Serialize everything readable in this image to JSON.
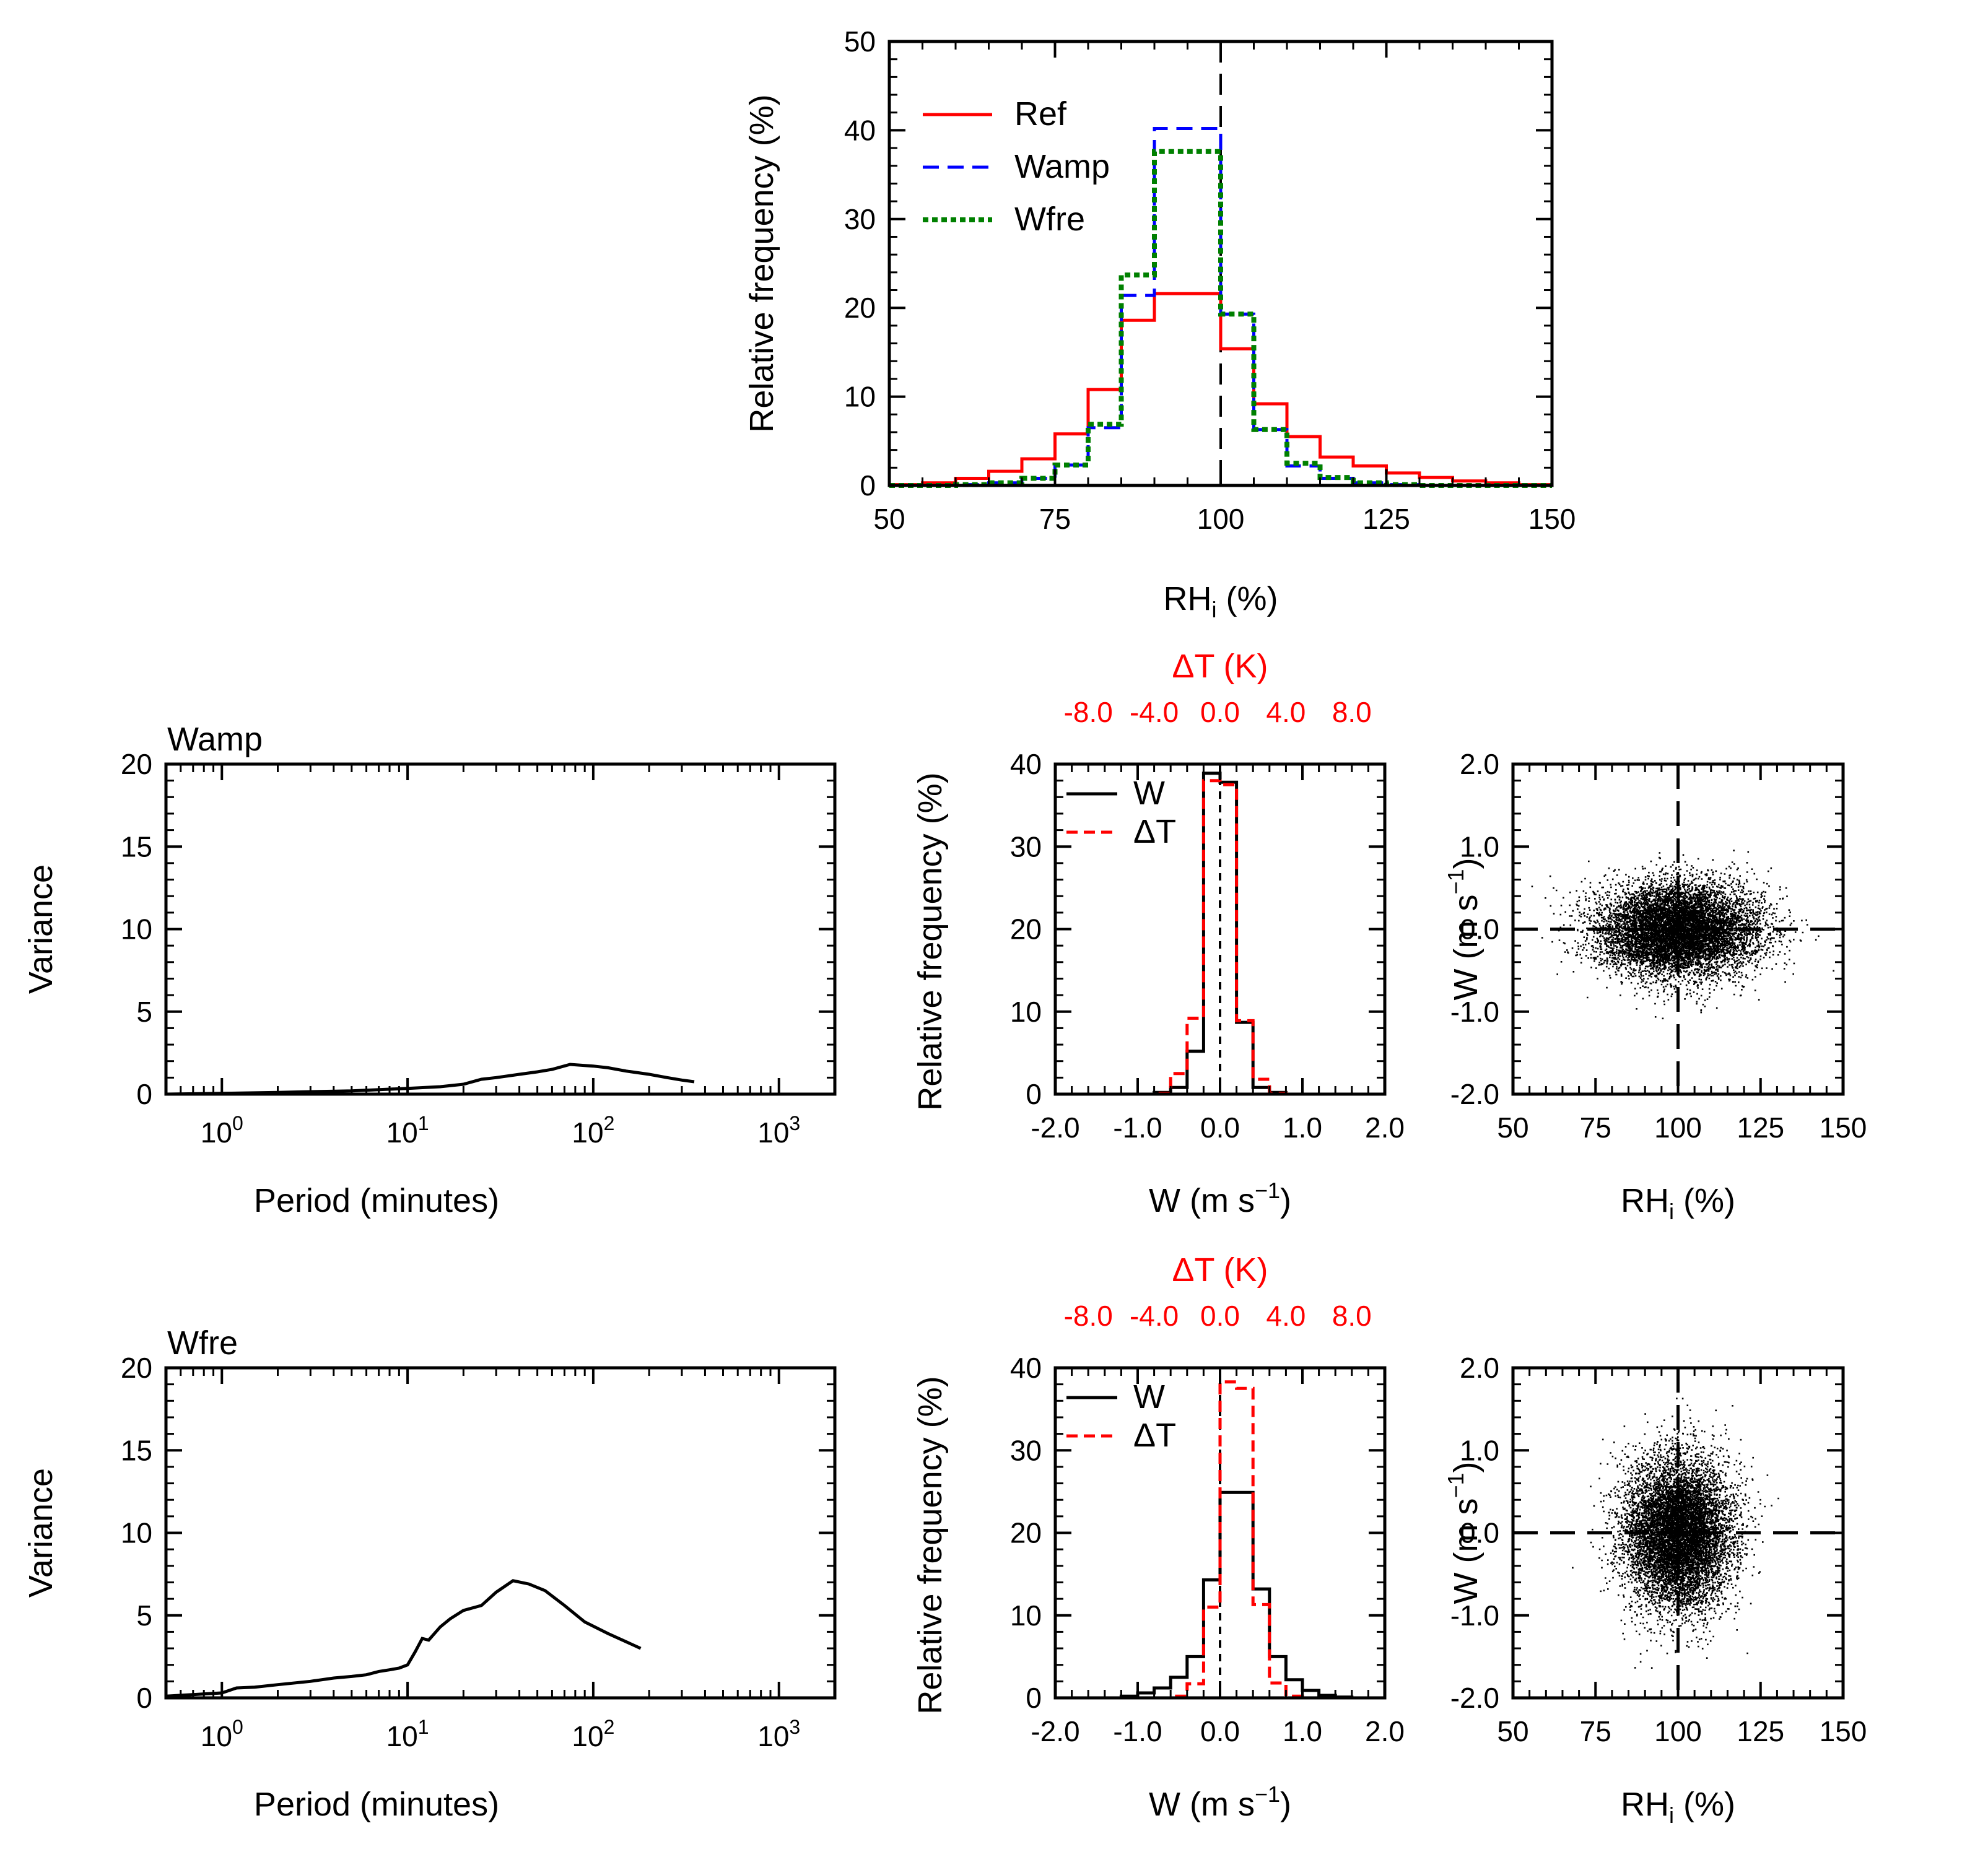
{
  "chart_data": [
    {
      "id": "top",
      "type": "histogram",
      "xlabel": "RH",
      "xlabel_sub": "i",
      "xlabel_unit": " (%)",
      "ylabel": "Relative frequency (%)",
      "xlim": [
        50,
        150
      ],
      "ylim": [
        0,
        50
      ],
      "xticks": [
        "50",
        "75",
        "100",
        "125",
        "150"
      ],
      "yticks": [
        "0",
        "10",
        "20",
        "30",
        "40",
        "50"
      ],
      "vline_x": 100,
      "legend": "top-left",
      "bin_edges": [
        50,
        55,
        60,
        65,
        70,
        75,
        80,
        85,
        90,
        95,
        100,
        105,
        110,
        115,
        120,
        125,
        130,
        135,
        140,
        145,
        150
      ],
      "series": [
        {
          "name": "Ref",
          "color": "#ff0000",
          "style": "solid",
          "values": [
            0.1,
            0.3,
            0.8,
            1.6,
            3.0,
            5.8,
            10.8,
            18.6,
            21.6,
            21.6,
            15.4,
            9.2,
            5.5,
            3.2,
            2.2,
            1.4,
            0.9,
            0.5,
            0.3,
            0.1
          ]
        },
        {
          "name": "Wamp",
          "color": "#0000ff",
          "style": "dashed",
          "values": [
            0.0,
            0.0,
            0.1,
            0.3,
            0.8,
            2.3,
            6.5,
            21.4,
            40.2,
            40.2,
            19.3,
            6.3,
            2.2,
            0.8,
            0.3,
            0.1,
            0.0,
            0.0,
            0.0,
            0.0
          ]
        },
        {
          "name": "Wfre",
          "color": "#008000",
          "style": "dotted",
          "values": [
            0.0,
            0.0,
            0.1,
            0.3,
            0.8,
            2.3,
            6.9,
            23.7,
            37.6,
            37.6,
            19.3,
            6.3,
            2.5,
            0.9,
            0.3,
            0.1,
            0.0,
            0.0,
            0.0,
            0.0
          ]
        }
      ]
    },
    {
      "id": "spec1",
      "type": "line",
      "title": "Wamp",
      "xlabel": "Period (minutes)",
      "ylabel": "Variance",
      "xscale": "log",
      "xlim": [
        0.5,
        2000
      ],
      "ylim": [
        0,
        20
      ],
      "xticks": [
        "10",
        "10",
        "10",
        "10"
      ],
      "xtick_exp": [
        "0",
        "1",
        "2",
        "3"
      ],
      "yticks": [
        "0",
        "5",
        "10",
        "15",
        "20"
      ],
      "series": [
        {
          "name": "",
          "x": [
            0.5,
            1,
            2,
            3,
            5,
            8,
            10,
            15,
            20,
            25,
            30,
            40,
            50,
            60,
            75,
            100,
            120,
            150,
            200,
            250,
            300,
            350
          ],
          "y": [
            0.0,
            0.05,
            0.1,
            0.15,
            0.2,
            0.3,
            0.35,
            0.45,
            0.6,
            0.9,
            1.0,
            1.2,
            1.35,
            1.5,
            1.8,
            1.7,
            1.6,
            1.4,
            1.2,
            1.0,
            0.85,
            0.75
          ]
        }
      ]
    },
    {
      "id": "hist1",
      "type": "histogram",
      "xlabel": "W (m s",
      "xlabel_sup": "−1",
      "xlabel_close": ")",
      "ylabel": "Relative frequency (%)",
      "top_xlabel": "ΔT (K)",
      "top_xticks": [
        "-8.0",
        "-4.0",
        "0.0",
        "4.0",
        "8.0"
      ],
      "xlim": [
        -2.0,
        2.0
      ],
      "ylim": [
        0,
        40
      ],
      "xticks": [
        "-2.0",
        "-1.0",
        "0.0",
        "1.0",
        "2.0"
      ],
      "yticks": [
        "0",
        "10",
        "20",
        "30",
        "40"
      ],
      "vline_x": 0,
      "legend": "top-left",
      "bin_edges": [
        -2.0,
        -1.8,
        -1.6,
        -1.4,
        -1.2,
        -1.0,
        -0.8,
        -0.6,
        -0.4,
        -0.2,
        0.0,
        0.2,
        0.4,
        0.6,
        0.8,
        1.0,
        1.2,
        1.4,
        1.6,
        1.8,
        2.0
      ],
      "series": [
        {
          "name": "W",
          "color": "#000000",
          "style": "solid",
          "values": [
            0,
            0,
            0,
            0,
            0,
            0,
            0.2,
            0.8,
            5.2,
            38.9,
            37.8,
            8.7,
            0.8,
            0.2,
            0,
            0,
            0,
            0,
            0,
            0
          ]
        },
        {
          "name": "ΔT",
          "color": "#ff0000",
          "style": "dashed",
          "values": [
            0,
            0,
            0,
            0,
            0,
            0,
            0.1,
            2.5,
            9.2,
            38.0,
            37.5,
            8.9,
            1.8,
            0.1,
            0,
            0,
            0,
            0,
            0,
            0
          ]
        }
      ]
    },
    {
      "id": "scat1",
      "type": "scatter",
      "xlabel": "RH",
      "xlabel_sub": "i",
      "xlabel_unit": " (%)",
      "ylabel": "W (m s",
      "ylabel_sup": "−1",
      "ylabel_close": ")",
      "xlim": [
        50,
        150
      ],
      "ylim": [
        -2.0,
        2.0
      ],
      "xticks": [
        "50",
        "75",
        "100",
        "125",
        "150"
      ],
      "yticks": [
        "-2.0",
        "-1.0",
        "0.0",
        "1.0",
        "2.0"
      ],
      "center": [
        100,
        0
      ],
      "spread": [
        12,
        0.28
      ],
      "cross_x": 100,
      "cross_y": 0
    },
    {
      "id": "spec2",
      "type": "line",
      "title": "Wfre",
      "xlabel": "Period (minutes)",
      "ylabel": "Variance",
      "xscale": "log",
      "xlim": [
        0.5,
        2000
      ],
      "ylim": [
        0,
        20
      ],
      "xticks": [
        "10",
        "10",
        "10",
        "10"
      ],
      "xtick_exp": [
        "0",
        "1",
        "2",
        "3"
      ],
      "yticks": [
        "0",
        "5",
        "10",
        "15",
        "20"
      ],
      "series": [
        {
          "name": "",
          "x": [
            0.5,
            1,
            1.2,
            1.5,
            2,
            3,
            4,
            5,
            6,
            7,
            8,
            9,
            10,
            11,
            12,
            13,
            15,
            17,
            20,
            25,
            30,
            37,
            45,
            55,
            70,
            90,
            120,
            180
          ],
          "y": [
            0.1,
            0.3,
            0.6,
            0.65,
            0.8,
            1.0,
            1.2,
            1.3,
            1.4,
            1.6,
            1.7,
            1.8,
            2.0,
            2.8,
            3.6,
            3.5,
            4.3,
            4.8,
            5.3,
            5.6,
            6.4,
            7.1,
            6.9,
            6.5,
            5.6,
            4.6,
            3.9,
            3.0
          ]
        }
      ]
    },
    {
      "id": "hist2",
      "type": "histogram",
      "xlabel": "W (m s",
      "xlabel_sup": "−1",
      "xlabel_close": ")",
      "ylabel": "Relative frequency (%)",
      "top_xlabel": "ΔT (K)",
      "top_xticks": [
        "-8.0",
        "-4.0",
        "0.0",
        "4.0",
        "8.0"
      ],
      "xlim": [
        -2.0,
        2.0
      ],
      "ylim": [
        0,
        40
      ],
      "xticks": [
        "-2.0",
        "-1.0",
        "0.0",
        "1.0",
        "2.0"
      ],
      "yticks": [
        "0",
        "10",
        "20",
        "30",
        "40"
      ],
      "vline_x": 0,
      "legend": "top-left",
      "bin_edges": [
        -2.0,
        -1.8,
        -1.6,
        -1.4,
        -1.2,
        -1.0,
        -0.8,
        -0.6,
        -0.4,
        -0.2,
        0.0,
        0.2,
        0.4,
        0.6,
        0.8,
        1.0,
        1.2,
        1.4,
        1.6,
        1.8,
        2.0
      ],
      "series": [
        {
          "name": "W",
          "color": "#000000",
          "style": "solid",
          "values": [
            0,
            0,
            0,
            0,
            0.2,
            0.6,
            1.2,
            2.5,
            5.0,
            14.3,
            24.9,
            24.9,
            13.2,
            5.0,
            2.2,
            0.9,
            0.3,
            0.1,
            0,
            0
          ]
        },
        {
          "name": "ΔT",
          "color": "#ff0000",
          "style": "dashed",
          "values": [
            0,
            0,
            0,
            0,
            0,
            0,
            0,
            0.2,
            1.7,
            11.0,
            38.3,
            37.5,
            11.3,
            1.8,
            0.2,
            0,
            0,
            0,
            0,
            0
          ]
        }
      ]
    },
    {
      "id": "scat2",
      "type": "scatter",
      "xlabel": "RH",
      "xlabel_sub": "i",
      "xlabel_unit": " (%)",
      "ylabel": "W (m s",
      "ylabel_sup": "−1",
      "ylabel_close": ")",
      "xlim": [
        50,
        150
      ],
      "ylim": [
        -2.0,
        2.0
      ],
      "xticks": [
        "50",
        "75",
        "100",
        "125",
        "150"
      ],
      "yticks": [
        "-2.0",
        "-1.0",
        "0.0",
        "1.0",
        "2.0"
      ],
      "center": [
        100,
        0
      ],
      "spread": [
        8,
        0.45
      ],
      "cross_x": 100,
      "cross_y": 0
    }
  ]
}
